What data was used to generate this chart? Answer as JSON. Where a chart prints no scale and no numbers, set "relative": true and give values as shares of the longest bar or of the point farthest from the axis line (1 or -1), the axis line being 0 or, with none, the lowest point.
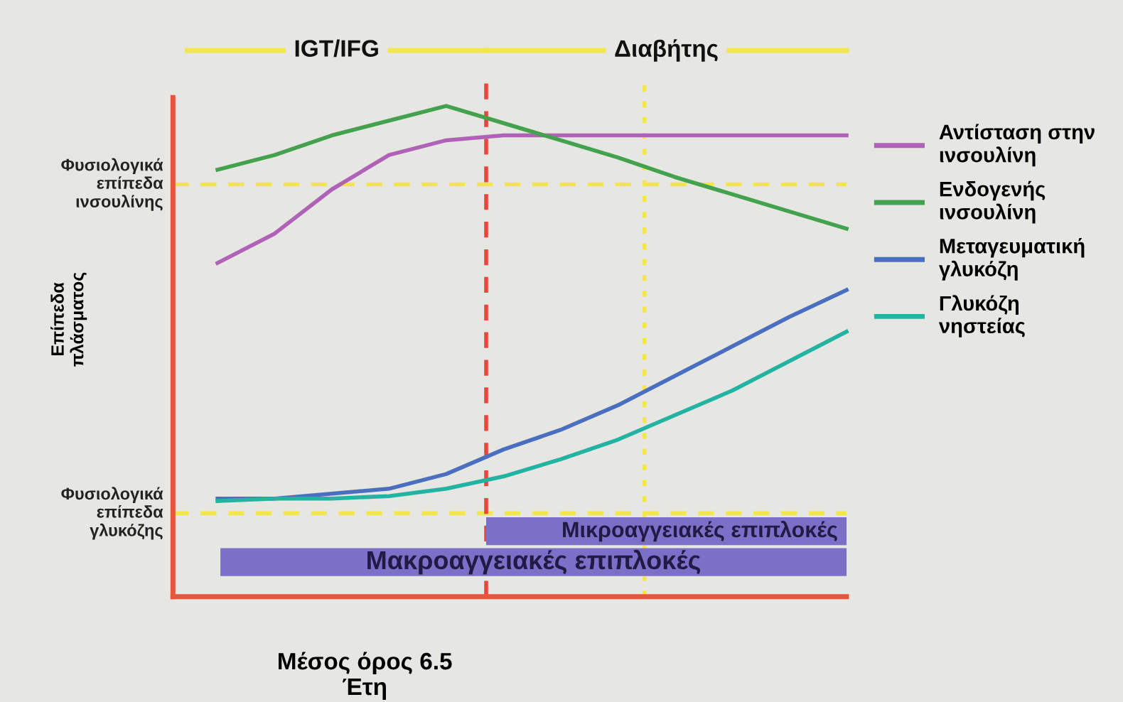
{
  "chart_data": {
    "type": "line",
    "relative": true,
    "xlabel": "Μέσος όρος 6.5\nΈτη",
    "ylabel": "Επίπεδα\nπλάσματος",
    "categories": [
      null,
      null,
      null,
      null,
      null,
      null,
      null,
      null,
      null,
      null,
      null,
      null
    ],
    "series": [
      {
        "name": "Αντίσταση στην\nινσουλίνη",
        "color": "#b062b8",
        "values": [
          0.68,
          0.74,
          0.83,
          0.9,
          0.93,
          0.94,
          0.94,
          0.94,
          0.94,
          0.94,
          0.94,
          0.94
        ]
      },
      {
        "name": "Ενδογενής\nινσουλίνη",
        "color": "#44a24e",
        "values": [
          0.87,
          0.9,
          0.94,
          0.97,
          1.0,
          0.965,
          0.93,
          0.895,
          0.855,
          0.82,
          0.785,
          0.75
        ]
      },
      {
        "name": "Μεταγευματική\nγλυκόζη",
        "color": "#4a6fc0",
        "values": [
          0.2,
          0.2,
          0.21,
          0.22,
          0.25,
          0.3,
          0.34,
          0.39,
          0.45,
          0.51,
          0.57,
          0.625
        ]
      },
      {
        "name": "Γλυκόζη\nνηστείας",
        "color": "#22b3a3",
        "values": [
          0.195,
          0.2,
          0.2,
          0.205,
          0.22,
          0.245,
          0.28,
          0.32,
          0.37,
          0.42,
          0.48,
          0.54
        ]
      }
    ],
    "ref_lines": [
      {
        "axis": "y",
        "value": 0.84,
        "label": "Φυσιολογικά\nεπίπεδα\nινσουλίνης",
        "color": "#f2e64a",
        "line_style": "dashed"
      },
      {
        "axis": "y",
        "value": 0.17,
        "label": "Φυσιολογικά\nεπίπεδα\nγλυκόζης",
        "color": "#f2e64a",
        "line_style": "dashed"
      }
    ],
    "annotations": [
      "IGT/IFG",
      "Διαβήτης",
      "Μικροαγγειακές επιπλοκές",
      "Μακροαγγειακές επιπλοκές"
    ],
    "legend": "right",
    "marker": "none",
    "line_style": "solid"
  }
}
